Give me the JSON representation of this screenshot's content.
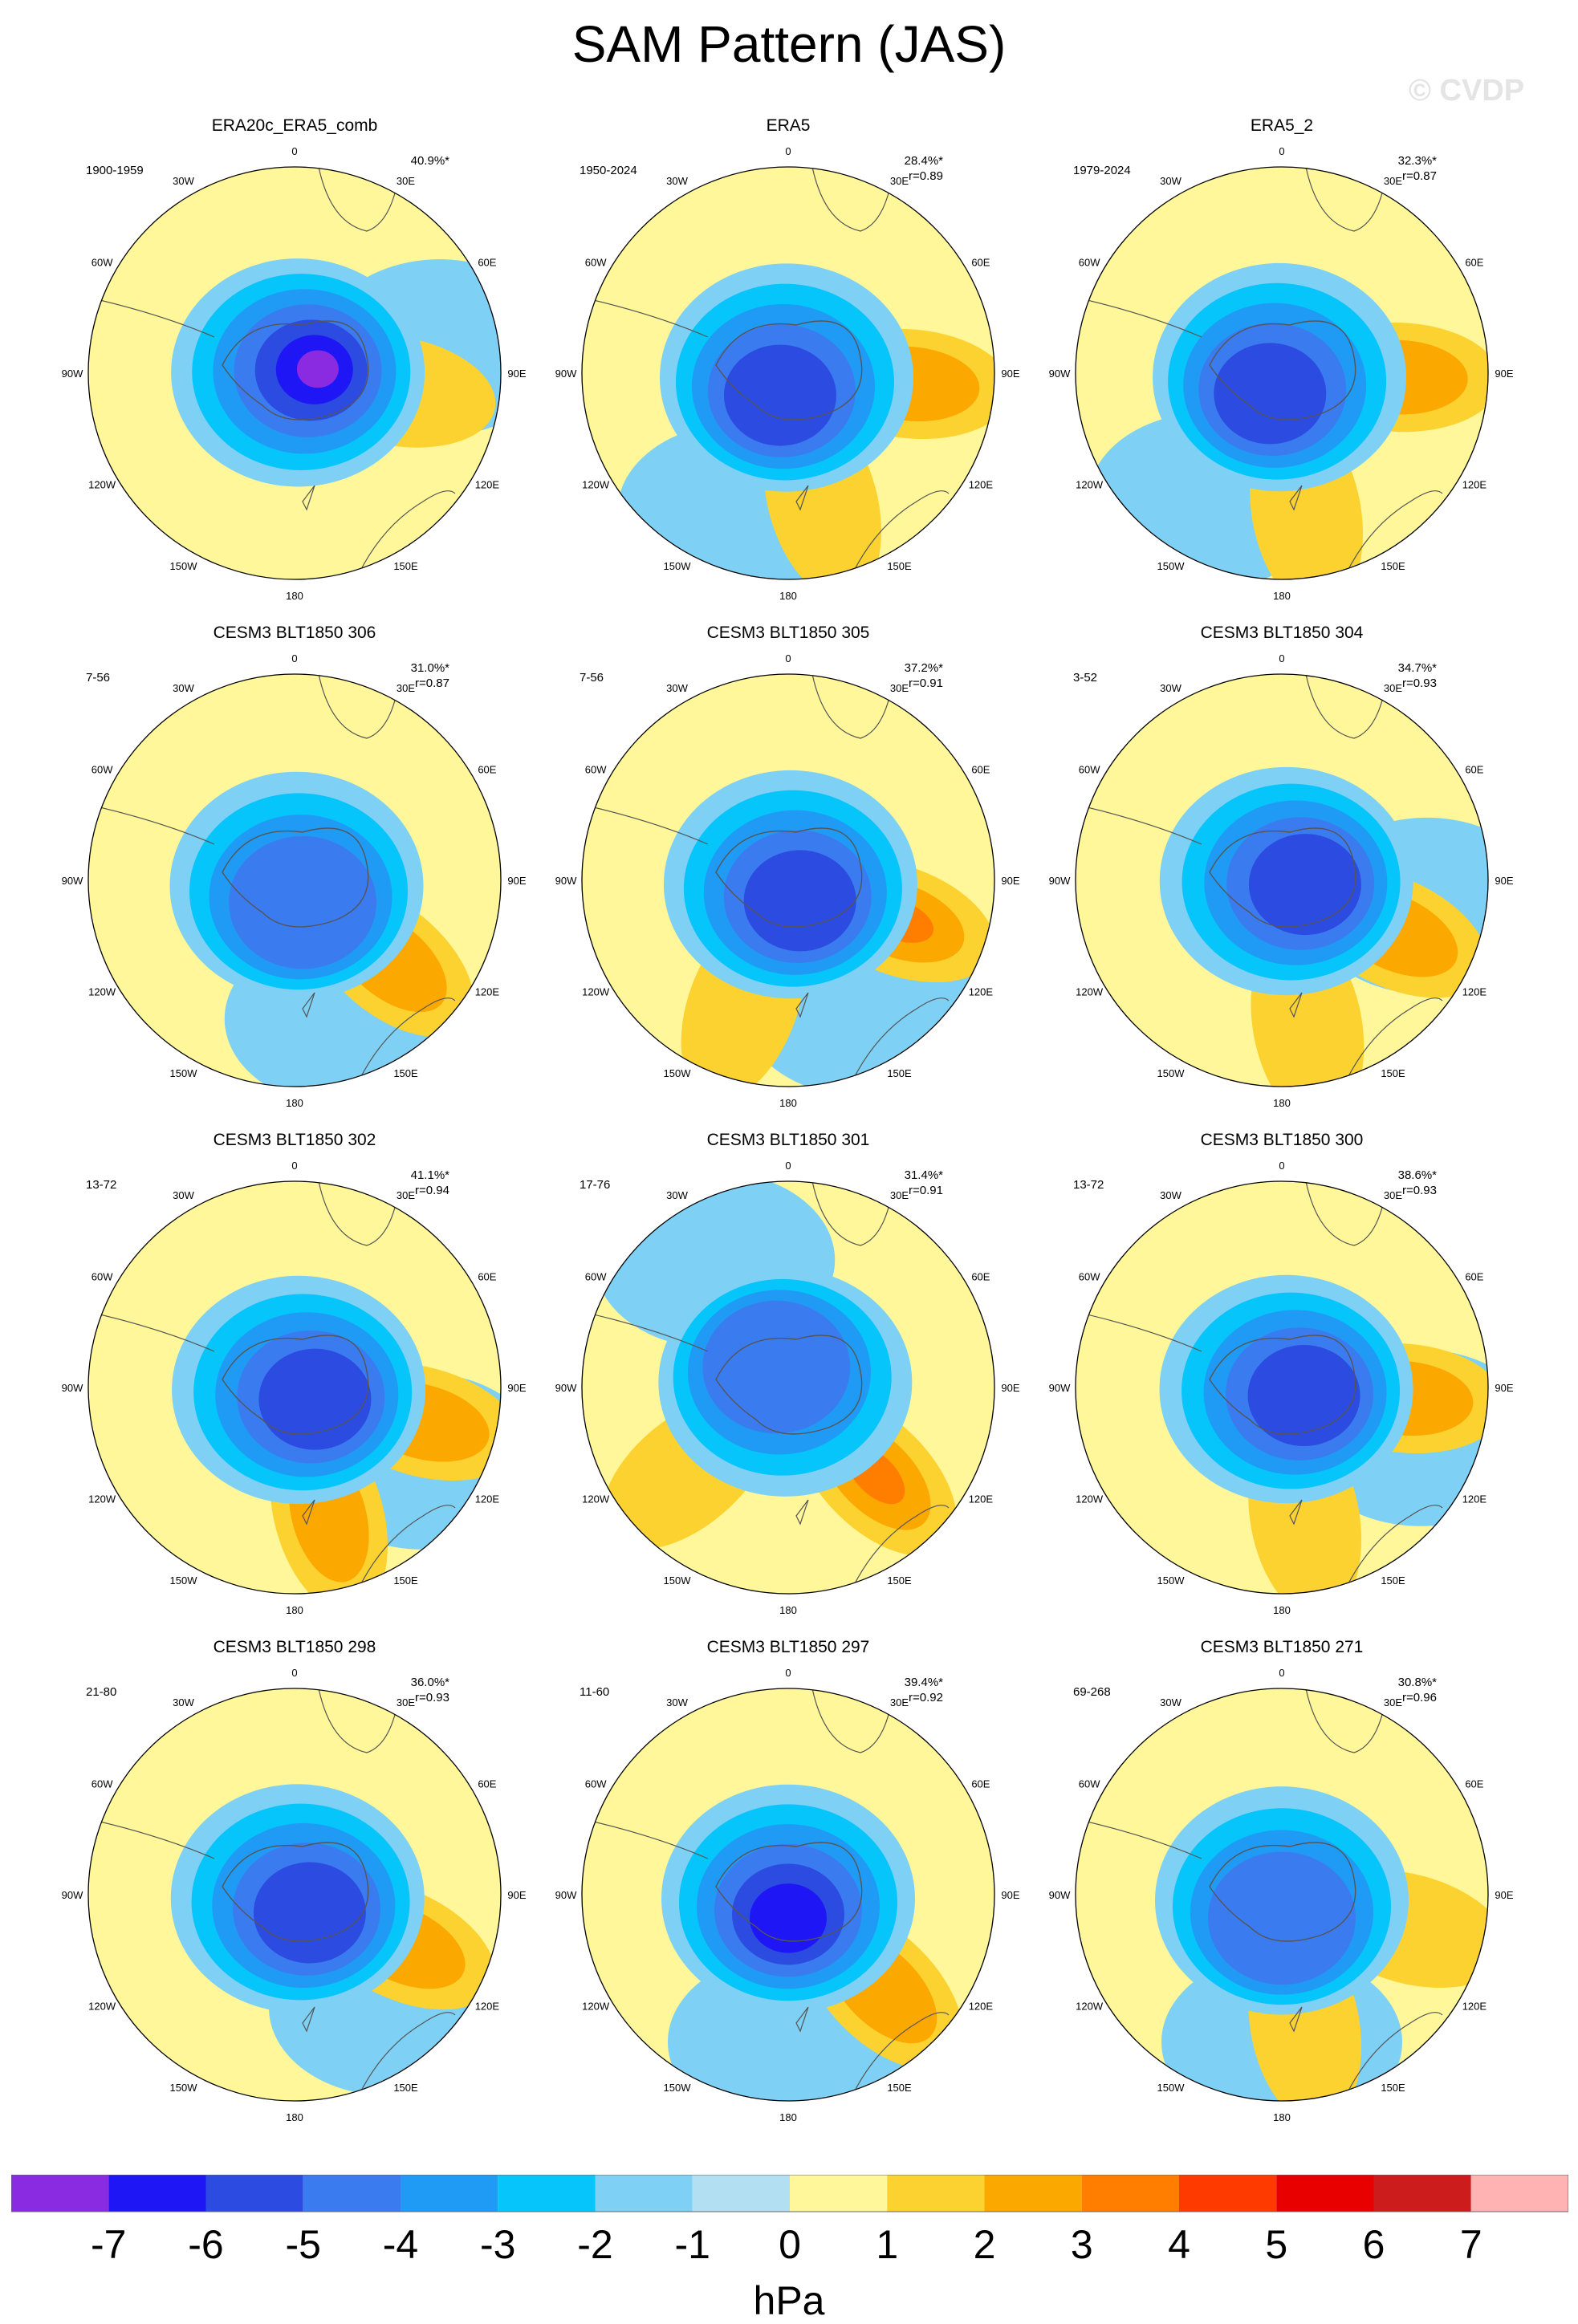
{
  "figure": {
    "title": "SAM Pattern (JAS)",
    "watermark": "© CVDP"
  },
  "map_labels": {
    "longitudes": [
      "0",
      "30E",
      "60E",
      "90E",
      "120E",
      "150E",
      "180",
      "150W",
      "120W",
      "90W",
      "60W",
      "30W"
    ]
  },
  "panels": [
    {
      "title": "ERA20c_ERA5_comb",
      "years": "1900-1959",
      "pct": "40.9%*",
      "corr": "",
      "trough_lon": 80,
      "trough_depth": 7,
      "pos": [
        {
          "lon": 100,
          "lat": -55,
          "v": 1
        }
      ]
    },
    {
      "title": "ERA5",
      "years": "1950-2024",
      "pct": "28.4%*",
      "corr": "r=0.89",
      "trough_lon": 200,
      "trough_depth": 5,
      "pos": [
        {
          "lon": 95,
          "lat": -48,
          "v": 2
        },
        {
          "lon": 165,
          "lat": -45,
          "v": 1
        }
      ]
    },
    {
      "title": "ERA5_2",
      "years": "1979-2024",
      "pct": "32.3%*",
      "corr": "r=0.87",
      "trough_lon": 210,
      "trough_depth": 5,
      "pos": [
        {
          "lon": 92,
          "lat": -50,
          "v": 2
        },
        {
          "lon": 170,
          "lat": -42,
          "v": 1
        }
      ]
    },
    {
      "title": "CESM3 BLT1850 306",
      "years": "7-56",
      "pct": "31.0%*",
      "corr": "r=0.87",
      "trough_lon": 160,
      "trough_depth": 4,
      "pos": [
        {
          "lon": 130,
          "lat": -48,
          "v": 2
        }
      ]
    },
    {
      "title": "CESM3 BLT1850 305",
      "years": "7-56",
      "pct": "37.2%*",
      "corr": "r=0.91",
      "trough_lon": 150,
      "trough_depth": 5,
      "pos": [
        {
          "lon": 110,
          "lat": -50,
          "v": 3
        },
        {
          "lon": 200,
          "lat": -45,
          "v": 1
        }
      ]
    },
    {
      "title": "CESM3 BLT1850 304",
      "years": "3-52",
      "pct": "34.7%*",
      "corr": "r=0.93",
      "trough_lon": 100,
      "trough_depth": 5,
      "pos": [
        {
          "lon": 115,
          "lat": -48,
          "v": 2
        },
        {
          "lon": 170,
          "lat": -40,
          "v": 1
        }
      ]
    },
    {
      "title": "CESM3 BLT1850 302",
      "years": "13-72",
      "pct": "41.1%*",
      "corr": "r=0.94",
      "trough_lon": 120,
      "trough_depth": 5,
      "pos": [
        {
          "lon": 105,
          "lat": -45,
          "v": 2
        },
        {
          "lon": 165,
          "lat": -45,
          "v": 2
        }
      ]
    },
    {
      "title": "CESM3 BLT1850 301",
      "years": "17-76",
      "pct": "31.4%*",
      "corr": "r=0.91",
      "trough_lon": 330,
      "trough_depth": 4,
      "pos": [
        {
          "lon": 135,
          "lat": -48,
          "v": 3
        },
        {
          "lon": 230,
          "lat": -45,
          "v": 1
        }
      ]
    },
    {
      "title": "CESM3 BLT1850 300",
      "years": "13-72",
      "pct": "38.6%*",
      "corr": "r=0.93",
      "trough_lon": 110,
      "trough_depth": 5,
      "pos": [
        {
          "lon": 95,
          "lat": -48,
          "v": 2
        },
        {
          "lon": 170,
          "lat": -45,
          "v": 1
        }
      ]
    },
    {
      "title": "CESM3 BLT1850 298",
      "years": "21-80",
      "pct": "36.0%*",
      "corr": "r=0.93",
      "trough_lon": 140,
      "trough_depth": 5,
      "pos": [
        {
          "lon": 115,
          "lat": -50,
          "v": 2
        }
      ]
    },
    {
      "title": "CESM3 BLT1850 297",
      "years": "11-60",
      "pct": "39.4%*",
      "corr": "r=0.92",
      "trough_lon": 180,
      "trough_depth": 6,
      "pos": [
        {
          "lon": 135,
          "lat": -45,
          "v": 2
        }
      ]
    },
    {
      "title": "CESM3 BLT1850 271",
      "years": "69-268",
      "pct": "30.8%*",
      "corr": "r=0.96",
      "trough_lon": 180,
      "trough_depth": 4,
      "pos": [
        {
          "lon": 105,
          "lat": -45,
          "v": 1
        },
        {
          "lon": 170,
          "lat": -45,
          "v": 1
        }
      ]
    }
  ],
  "colorbar": {
    "labels": [
      "-7",
      "-6",
      "-5",
      "-4",
      "-3",
      "-2",
      "-1",
      "0",
      "1",
      "2",
      "3",
      "4",
      "5",
      "6",
      "7"
    ],
    "colors": [
      "#8a2be2",
      "#1e16f5",
      "#2c4be0",
      "#3b7bf0",
      "#1f9bf5",
      "#05c5fa",
      "#7fd0f5",
      "#b2e0f2",
      "#fff799",
      "#fbd230",
      "#fba800",
      "#ff7e00",
      "#ff3a00",
      "#e80000",
      "#cc1c1c",
      "#ffb3b3"
    ],
    "unit": "hPa"
  }
}
